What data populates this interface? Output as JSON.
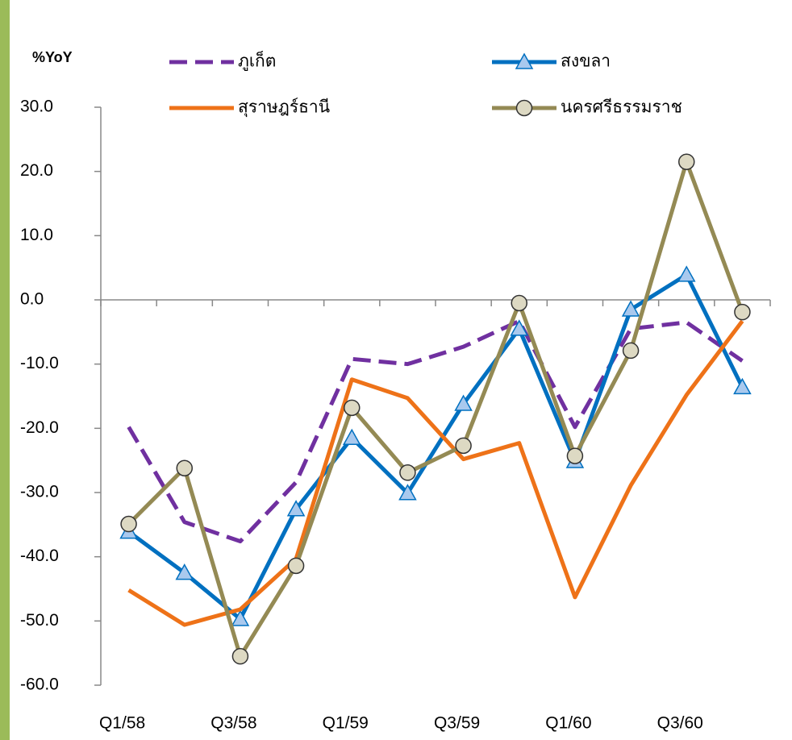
{
  "chart_data": {
    "type": "line",
    "y_label": "%YoY",
    "categories": [
      "Q1/58",
      null,
      "Q3/58",
      null,
      "Q1/59",
      null,
      "Q3/59",
      null,
      "Q1/60",
      null,
      "Q3/60",
      null
    ],
    "ylim": [
      -60,
      30
    ],
    "yticks": [
      {
        "value": 30,
        "label": "30.0"
      },
      {
        "value": 20,
        "label": "20.0"
      },
      {
        "value": 10,
        "label": "10.0"
      },
      {
        "value": 0,
        "label": "0.0"
      },
      {
        "value": -10,
        "label": "-10.0"
      },
      {
        "value": -20,
        "label": "-20.0"
      },
      {
        "value": -30,
        "label": "-30.0"
      },
      {
        "value": -40,
        "label": "-40.0"
      },
      {
        "value": -50,
        "label": "-50.0"
      },
      {
        "value": -60,
        "label": "-60.0"
      }
    ],
    "negative_tick_color": "#ff0000",
    "series": [
      {
        "name": "ภูเก็ต",
        "color": "#7030a0",
        "dashed": true,
        "marker": "none",
        "values": [
          -19.8,
          -34.6,
          -37.6,
          -28.4,
          -9.2,
          -10.0,
          -7.3,
          -3.3,
          -19.8,
          -4.5,
          -3.5,
          -9.5
        ]
      },
      {
        "name": "สงขลา",
        "color": "#0070c0",
        "dashed": false,
        "marker": "triangle",
        "marker_fill": "#a9c9ee",
        "values": [
          -36.1,
          -42.5,
          -49.7,
          -32.6,
          -21.5,
          -30.1,
          -16.2,
          -4.5,
          -25.1,
          -1.5,
          3.9,
          -13.6
        ]
      },
      {
        "name": "สุราษฎร์ธานี",
        "color": "#ee7218",
        "dashed": false,
        "marker": "none",
        "values": [
          -45.2,
          -50.6,
          -48.2,
          -40.3,
          -12.4,
          -15.3,
          -24.8,
          -22.3,
          -46.3,
          -28.9,
          -14.8,
          -3.3
        ]
      },
      {
        "name": "นครศรีธรรมราช",
        "color": "#948a54",
        "dashed": false,
        "marker": "circle",
        "marker_fill": "#ddd9c3",
        "values": [
          -34.9,
          -26.2,
          -55.5,
          -41.4,
          -16.8,
          -26.9,
          -22.7,
          -0.5,
          -24.3,
          -7.9,
          21.5,
          -1.9
        ]
      }
    ]
  }
}
